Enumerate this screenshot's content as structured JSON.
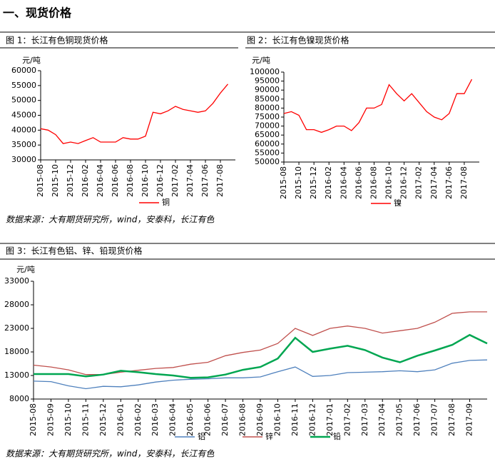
{
  "heading": "一、现货价格",
  "chart_data": [
    {
      "type": "line",
      "title": "图 1：长江有色铜现货价格",
      "y_label": "元/吨",
      "x": [
        "2015-08",
        "2015-09",
        "2015-10",
        "2015-11",
        "2015-12",
        "2016-01",
        "2016-02",
        "2016-03",
        "2016-04",
        "2016-05",
        "2016-06",
        "2016-07",
        "2016-08",
        "2016-09",
        "2016-10",
        "2016-11",
        "2016-12",
        "2017-01",
        "2017-02",
        "2017-03",
        "2017-04",
        "2017-05",
        "2017-06",
        "2017-07",
        "2017-08",
        "2017-09"
      ],
      "xlim": [
        "2015-08",
        "2017-10"
      ],
      "xticks": [
        "2015-08",
        "2015-10",
        "2015-12",
        "2016-02",
        "2016-04",
        "2016-06",
        "2016-08",
        "2016-10",
        "2016-12",
        "2017-02",
        "2017-04",
        "2017-06",
        "2017-08"
      ],
      "ylim": [
        30000,
        60000
      ],
      "yticks": [
        30000,
        35000,
        40000,
        45000,
        50000,
        55000,
        60000
      ],
      "series": [
        {
          "name": "铜",
          "color": "#ff0000",
          "values": [
            40500,
            40000,
            38500,
            35500,
            36000,
            35500,
            36500,
            37500,
            36000,
            36000,
            36000,
            37500,
            37000,
            37000,
            38000,
            46000,
            45500,
            46500,
            48000,
            47000,
            46500,
            46000,
            46500,
            49000,
            52500,
            55500
          ]
        }
      ]
    },
    {
      "type": "line",
      "title": "图 2：长江有色镍现货价格",
      "y_label": "元/吨",
      "x": [
        "2015-08",
        "2015-09",
        "2015-10",
        "2015-11",
        "2015-12",
        "2016-01",
        "2016-02",
        "2016-03",
        "2016-04",
        "2016-05",
        "2016-06",
        "2016-07",
        "2016-08",
        "2016-09",
        "2016-10",
        "2016-11",
        "2016-12",
        "2017-01",
        "2017-02",
        "2017-03",
        "2017-04",
        "2017-05",
        "2017-06",
        "2017-07",
        "2017-08",
        "2017-09"
      ],
      "xlim": [
        "2015-08",
        "2017-10"
      ],
      "xticks": [
        "2015-08",
        "2015-10",
        "2015-12",
        "2016-02",
        "2016-04",
        "2016-06",
        "2016-08",
        "2016-10",
        "2016-12",
        "2017-02",
        "2017-04",
        "2017-06",
        "2017-08"
      ],
      "ylim": [
        50000,
        100000
      ],
      "yticks": [
        50000,
        55000,
        60000,
        65000,
        70000,
        75000,
        80000,
        85000,
        90000,
        95000,
        100000
      ],
      "series": [
        {
          "name": "镍",
          "color": "#ff0000",
          "values": [
            77000,
            78000,
            76000,
            68000,
            68000,
            66500,
            68000,
            70000,
            70000,
            67500,
            72000,
            80000,
            80000,
            82000,
            93000,
            88000,
            84000,
            88000,
            83000,
            78000,
            75000,
            73500,
            77000,
            88000,
            88000,
            96000
          ]
        }
      ]
    },
    {
      "type": "line",
      "title": "图 3：长江有色铝、锌、铅现货价格",
      "y_label": "元/吨",
      "x": [
        "2015-08",
        "2015-09",
        "2015-10",
        "2015-11",
        "2015-12",
        "2016-01",
        "2016-02",
        "2016-03",
        "2016-04",
        "2016-05",
        "2016-06",
        "2016-07",
        "2016-08",
        "2016-09",
        "2016-10",
        "2016-11",
        "2016-12",
        "2017-01",
        "2017-02",
        "2017-03",
        "2017-04",
        "2017-05",
        "2017-06",
        "2017-07",
        "2017-08",
        "2017-09",
        "2017-10"
      ],
      "xlim": [
        "2015-08",
        "2017-10"
      ],
      "xticks": [
        "2015-08",
        "2015-09",
        "2015-10",
        "2015-11",
        "2015-12",
        "2016-01",
        "2016-02",
        "2016-03",
        "2016-04",
        "2016-05",
        "2016-06",
        "2016-07",
        "2016-08",
        "2016-09",
        "2016-10",
        "2016-11",
        "2016-12",
        "2017-01",
        "2017-02",
        "2017-03",
        "2017-04",
        "2017-05",
        "2017-06",
        "2017-07",
        "2017-08",
        "2017-09"
      ],
      "ylim": [
        8000,
        33000
      ],
      "yticks": [
        8000,
        13000,
        18000,
        23000,
        28000,
        33000
      ],
      "series": [
        {
          "name": "铝",
          "color": "#4f81bd",
          "values": [
            11800,
            11700,
            10800,
            10200,
            10700,
            10600,
            11000,
            11600,
            12000,
            12200,
            12300,
            12500,
            12500,
            12700,
            13800,
            14800,
            12800,
            13000,
            13600,
            13700,
            13800,
            14000,
            13800,
            14200,
            15600,
            16200,
            16300
          ]
        },
        {
          "name": "锌",
          "color": "#c0504d",
          "values": [
            15200,
            14800,
            14200,
            13200,
            13200,
            13700,
            14100,
            14500,
            14700,
            15400,
            15800,
            17200,
            17900,
            18400,
            19800,
            23000,
            21500,
            23000,
            23500,
            23000,
            22000,
            22500,
            23000,
            24300,
            26200,
            26500,
            26500
          ]
        },
        {
          "name": "铅",
          "color": "#00a651",
          "values": [
            13300,
            13300,
            13300,
            12800,
            13200,
            14000,
            13700,
            13300,
            13000,
            12500,
            12600,
            13200,
            14200,
            14800,
            16600,
            21000,
            18000,
            18700,
            19300,
            18400,
            16800,
            15800,
            17200,
            18300,
            19500,
            21600,
            19800
          ]
        }
      ]
    }
  ],
  "sources": [
    "数据来源：大有期货研究所，wind，安泰科，长江有色",
    "数据来源：大有期货研究所，wind，安泰科，长江有色"
  ]
}
